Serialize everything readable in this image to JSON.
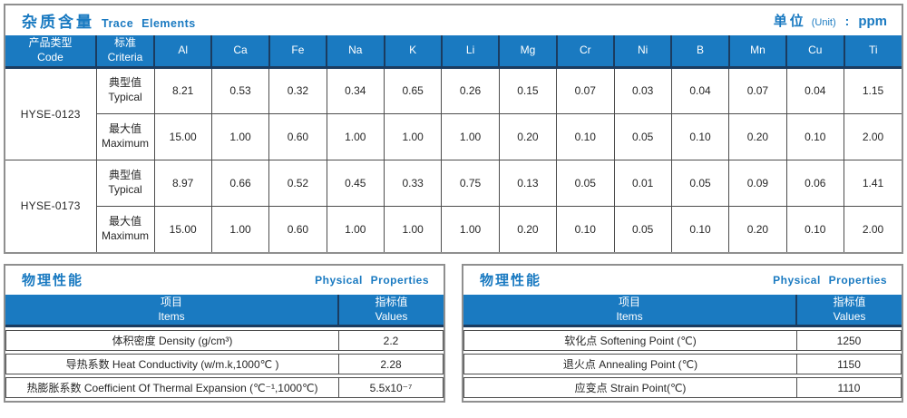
{
  "colors": {
    "accent_blue": "#1a7ac1",
    "header_divider_navy": "#1b3c60",
    "outer_border_gray": "#8f8f8f",
    "cell_border": "#4d4d4d",
    "text": "#262626"
  },
  "trace": {
    "title_cn": "杂质含量",
    "title_en": "Trace Elements",
    "unit_label_cn": "单位",
    "unit_label_en": "(Unit)",
    "unit_colon": ":",
    "unit_value": "ppm",
    "header": {
      "code_cn": "产品类型",
      "code_en": "Code",
      "criteria_cn": "标准",
      "criteria_en": "Criteria",
      "elements": [
        "Al",
        "Ca",
        "Fe",
        "Na",
        "K",
        "Li",
        "Mg",
        "Cr",
        "Ni",
        "B",
        "Mn",
        "Cu",
        "Ti"
      ]
    },
    "groups": [
      {
        "code": "HYSE-0123",
        "rows": [
          {
            "label_cn": "典型值",
            "label_en": "Typical",
            "values": [
              "8.21",
              "0.53",
              "0.32",
              "0.34",
              "0.65",
              "0.26",
              "0.15",
              "0.07",
              "0.03",
              "0.04",
              "0.07",
              "0.04",
              "1.15"
            ]
          },
          {
            "label_cn": "最大值",
            "label_en": "Maximum",
            "values": [
              "15.00",
              "1.00",
              "0.60",
              "1.00",
              "1.00",
              "1.00",
              "0.20",
              "0.10",
              "0.05",
              "0.10",
              "0.20",
              "0.10",
              "2.00"
            ]
          }
        ]
      },
      {
        "code": "HYSE-0173",
        "rows": [
          {
            "label_cn": "典型值",
            "label_en": "Typical",
            "values": [
              "8.97",
              "0.66",
              "0.52",
              "0.45",
              "0.33",
              "0.75",
              "0.13",
              "0.05",
              "0.01",
              "0.05",
              "0.09",
              "0.06",
              "1.41"
            ]
          },
          {
            "label_cn": "最大值",
            "label_en": "Maximum",
            "values": [
              "15.00",
              "1.00",
              "0.60",
              "1.00",
              "1.00",
              "1.00",
              "0.20",
              "0.10",
              "0.05",
              "0.10",
              "0.20",
              "0.10",
              "2.00"
            ]
          }
        ]
      }
    ]
  },
  "physical_left": {
    "title_cn": "物理性能",
    "title_en": "Physical Properties",
    "col_items_cn": "项目",
    "col_items_en": "Items",
    "col_values_cn": "指标值",
    "col_values_en": "Values",
    "rows": [
      {
        "item": "体积密度 Density (g/cm³)",
        "value": "2.2"
      },
      {
        "item": "导热系数 Heat Conductivity (w/m.k,1000℃ )",
        "value": "2.28"
      },
      {
        "item": "热膨胀系数 Coefficient Of Thermal Expansion (℃⁻¹,1000℃)",
        "value": "5.5x10⁻⁷"
      }
    ]
  },
  "physical_right": {
    "title_cn": "物理性能",
    "title_en": "Physical Properties",
    "col_items_cn": "项目",
    "col_items_en": "Items",
    "col_values_cn": "指标值",
    "col_values_en": "Values",
    "rows": [
      {
        "item": "软化点 Softening Point (℃)",
        "value": "1250"
      },
      {
        "item": "退火点 Annealing Point (℃)",
        "value": "1150"
      },
      {
        "item": "应变点 Strain Point(℃)",
        "value": "1110"
      }
    ]
  }
}
